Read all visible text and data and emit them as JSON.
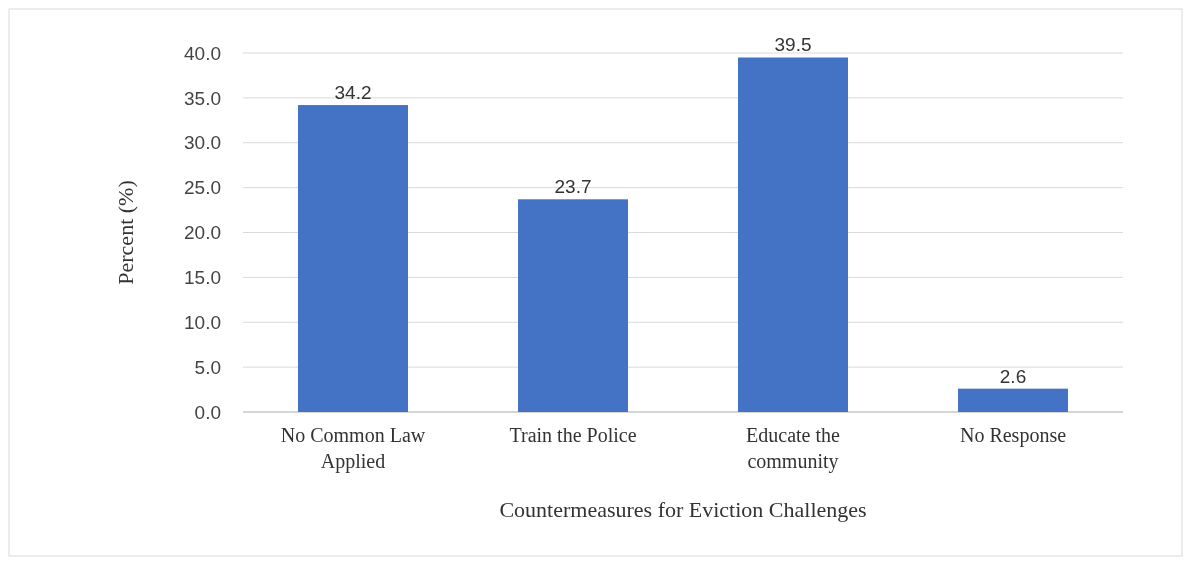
{
  "chart_data": {
    "type": "bar",
    "xlabel": "Countermeasures for Eviction Challenges",
    "ylabel": "Percent (%)",
    "categories": [
      "No Common Law Applied",
      "Train the Police",
      "Educate the community",
      "No Response"
    ],
    "values": [
      34.2,
      23.7,
      39.5,
      2.6
    ],
    "color": "#4472c4",
    "ylim": [
      0,
      40
    ],
    "yticks": [
      {
        "value": 0,
        "label": "0.0"
      },
      {
        "value": 5,
        "label": "5.0"
      },
      {
        "value": 10,
        "label": "10.0"
      },
      {
        "value": 15,
        "label": "15.0"
      },
      {
        "value": 20,
        "label": "20.0"
      },
      {
        "value": 25,
        "label": "25.0"
      },
      {
        "value": 30,
        "label": "30.0"
      },
      {
        "value": 35,
        "label": "35.0"
      },
      {
        "value": 40,
        "label": "40.0"
      }
    ],
    "grid": "y",
    "data_labels": true
  }
}
